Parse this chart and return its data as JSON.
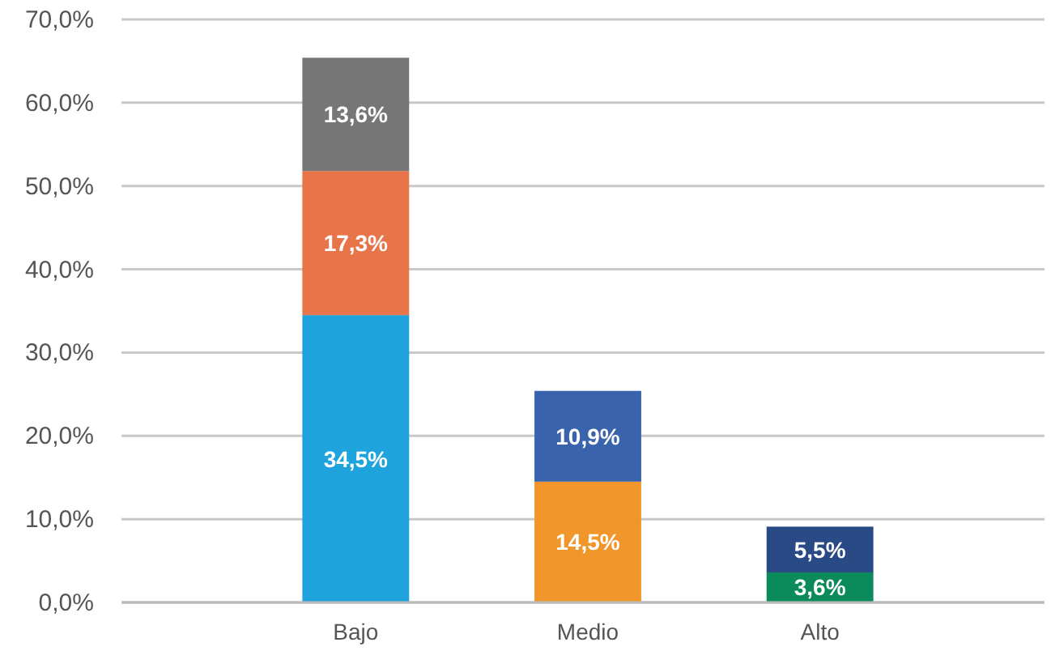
{
  "chart_data": {
    "type": "bar",
    "stacked": true,
    "categories": [
      "Bajo",
      "Medio",
      "Alto"
    ],
    "series": [
      {
        "values": [
          34.5,
          14.5,
          3.6
        ],
        "colors": [
          "#1ea3dc",
          "#f0962a",
          "#0b8a5c"
        ],
        "value_labels": [
          "34,5%",
          "14,5%",
          "3,6%"
        ]
      },
      {
        "values": [
          17.3,
          10.9,
          5.5
        ],
        "colors": [
          "#e8744a",
          "#3a63ae",
          "#2a4a86"
        ],
        "value_labels": [
          "17,3%",
          "10,9%",
          "5,5%"
        ]
      },
      {
        "values": [
          13.6,
          null,
          null
        ],
        "colors": [
          "#767676",
          null,
          null
        ],
        "value_labels": [
          "13,6%",
          null,
          null
        ]
      }
    ],
    "ylim": [
      0,
      70
    ],
    "yticks": [
      {
        "value": 0,
        "label": "0,0%"
      },
      {
        "value": 10,
        "label": "10,0%"
      },
      {
        "value": 20,
        "label": "20,0%"
      },
      {
        "value": 30,
        "label": "30,0%"
      },
      {
        "value": 40,
        "label": "40,0%"
      },
      {
        "value": 50,
        "label": "50,0%"
      },
      {
        "value": 60,
        "label": "60,0%"
      },
      {
        "value": 70,
        "label": "70,0%"
      }
    ],
    "grid": "y"
  }
}
